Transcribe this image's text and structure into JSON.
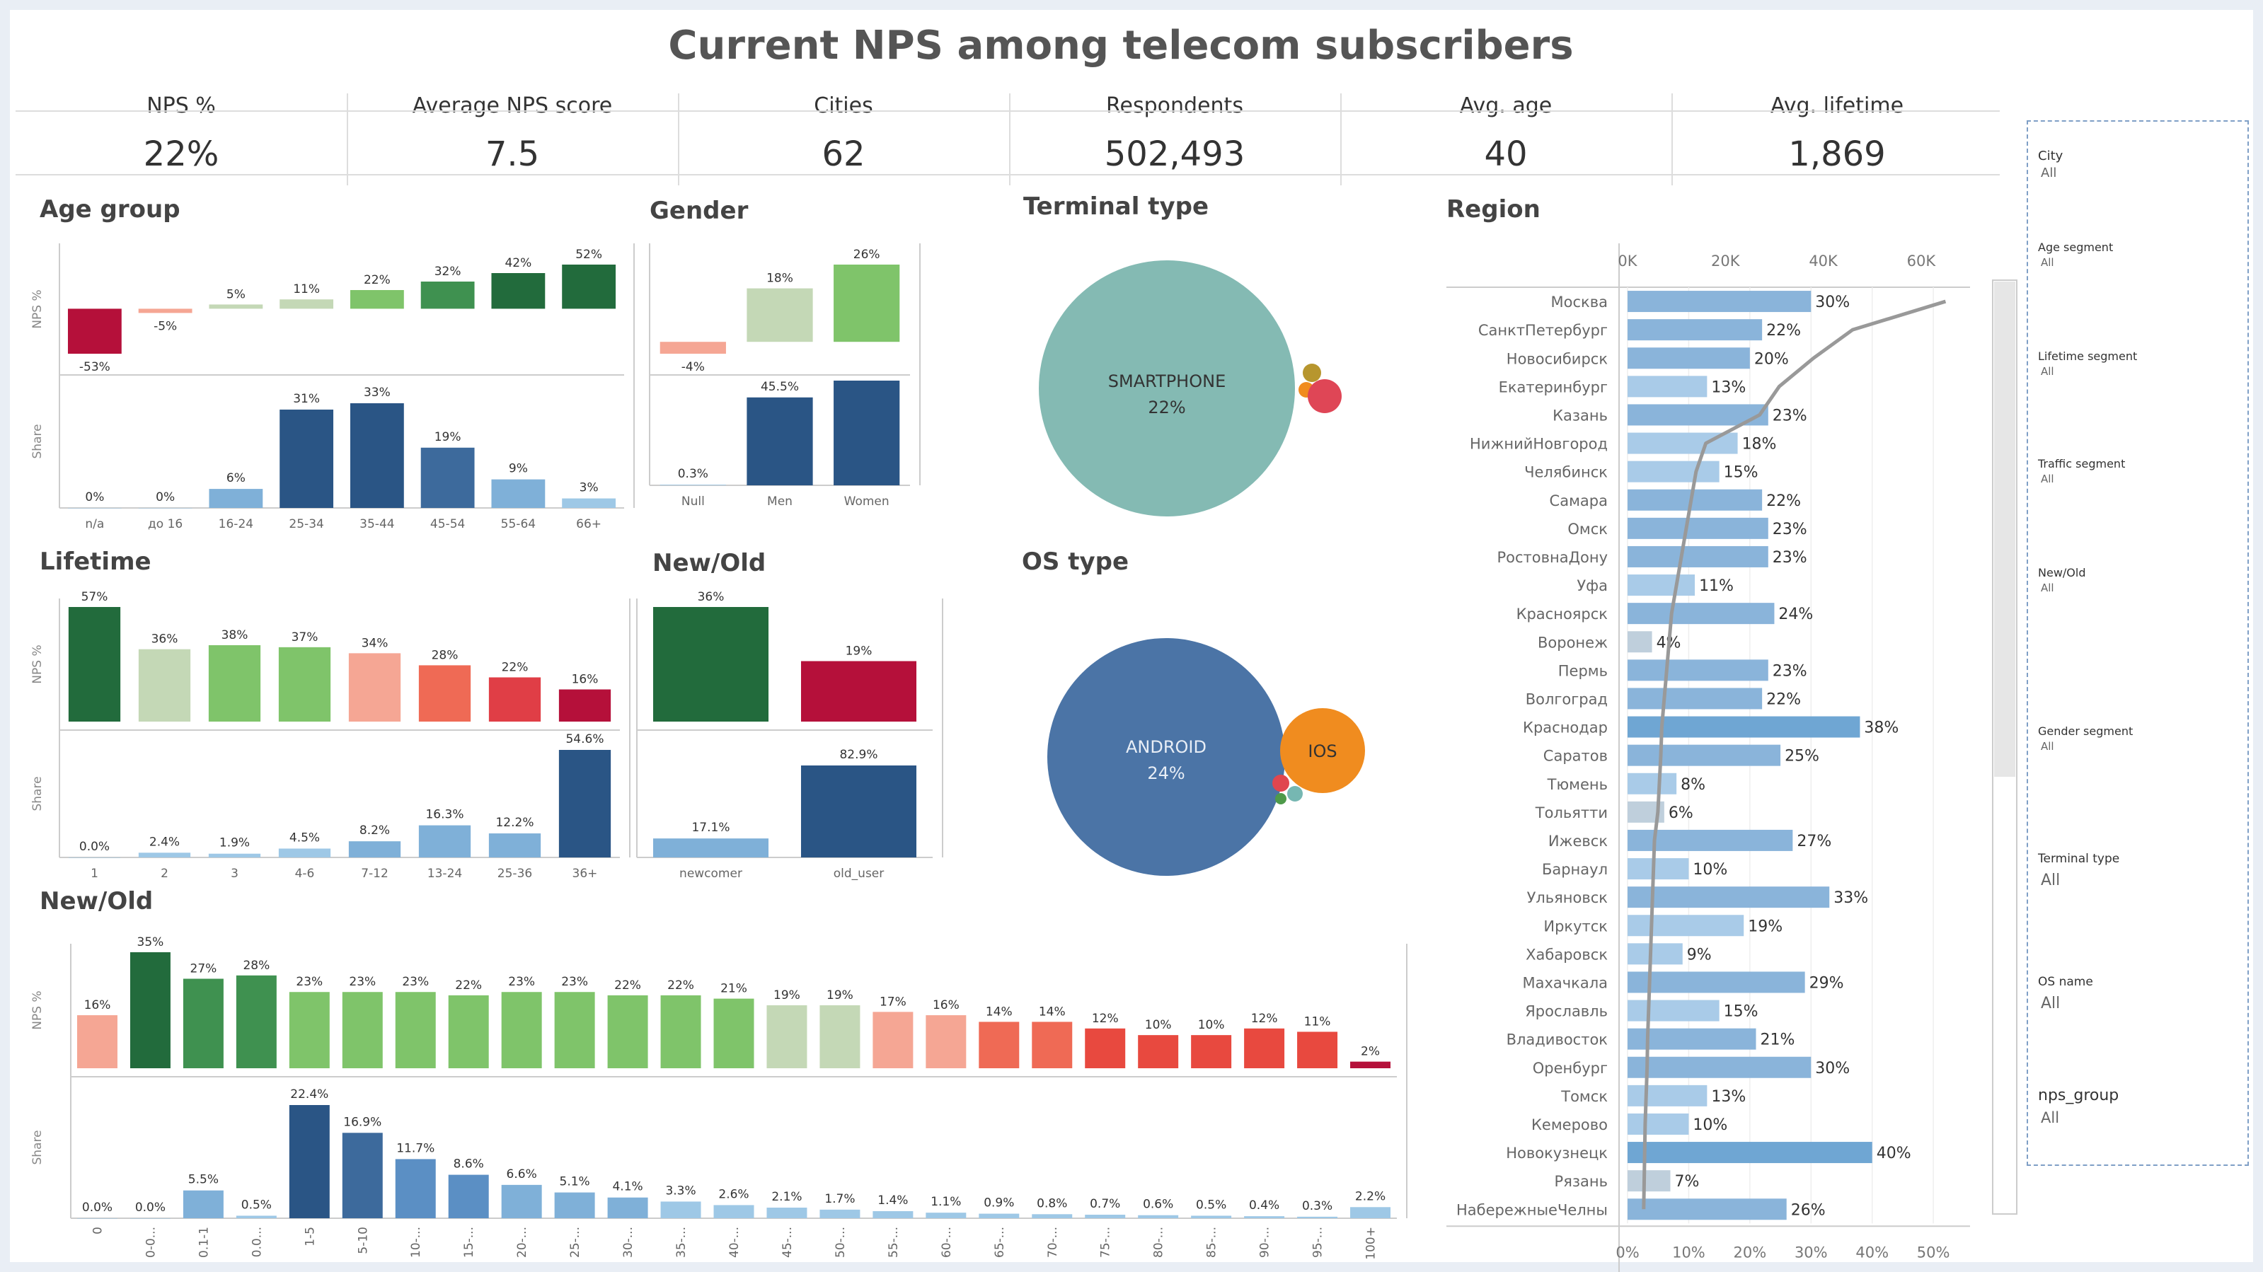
{
  "title": "Current NPS among telecom subscribers",
  "kpis": [
    {
      "label": "NPS %",
      "value": "22%"
    },
    {
      "label": "Average NPS score",
      "value": "7.5"
    },
    {
      "label": "Cities",
      "value": "62"
    },
    {
      "label": "Respondents",
      "value": "502,493"
    },
    {
      "label": "Avg. age",
      "value": "40"
    },
    {
      "label": "Avg. lifetime",
      "value": "1,869"
    }
  ],
  "sections": {
    "age_group": "Age group",
    "gender": "Gender",
    "terminal": "Terminal type",
    "region": "Region",
    "lifetime": "Lifetime",
    "newold": "New/Old",
    "os": "OS type",
    "newold2": "New/Old"
  },
  "axis_labels": {
    "nps": "NPS %",
    "share": "Share"
  },
  "colors": {
    "dark_green": "#226b3c",
    "green": "#3f9150",
    "light_green": "#7fc46a",
    "pale_green": "#c4d8b6",
    "red": "#b5103a",
    "salmon": "#f5a694",
    "orange_red": "#ef6a55",
    "dark_blue": "#2a5585",
    "mid_blue": "#3d6a9c",
    "blue": "#5b8fc4",
    "light_blue": "#9ec8e6",
    "bar_region": "#8ab4da",
    "teal": "#7fb9b1",
    "orange": "#f08c1f"
  },
  "filters": [
    {
      "name": "City",
      "value": "All"
    },
    {
      "name": "Age segment",
      "value": "All"
    },
    {
      "name": "Lifetime segment",
      "value": "All"
    },
    {
      "name": "Traffic segment",
      "value": "All"
    },
    {
      "name": "New/Old",
      "value": "All"
    },
    {
      "name": "Gender segment",
      "value": "All"
    },
    {
      "name": "Terminal type",
      "value": "All"
    },
    {
      "name": "OS name",
      "value": "All"
    },
    {
      "name": "nps_group",
      "value": "All"
    }
  ],
  "chart_data": [
    {
      "id": "age_group",
      "type": "bar",
      "title": "Age group",
      "categories": [
        "n/a",
        "до 16",
        "16-24",
        "25-34",
        "35-44",
        "45-54",
        "55-64",
        "66+"
      ],
      "series": [
        {
          "name": "NPS %",
          "values": [
            -53,
            -5,
            5,
            11,
            22,
            32,
            42,
            52
          ],
          "labels": [
            "-53%",
            "-5%",
            "5%",
            "11%",
            "22%",
            "32%",
            "42%",
            "52%"
          ]
        },
        {
          "name": "Share",
          "values": [
            0,
            0,
            6,
            31,
            33,
            19,
            9,
            3
          ],
          "labels": [
            "0%",
            "0%",
            "6%",
            "31%",
            "33%",
            "19%",
            "9%",
            "3%"
          ]
        }
      ]
    },
    {
      "id": "gender",
      "type": "bar",
      "title": "Gender",
      "categories": [
        "Null",
        "Men",
        "Women"
      ],
      "series": [
        {
          "name": "NPS %",
          "values": [
            -4,
            18,
            26
          ],
          "labels": [
            "-4%",
            "18%",
            "26%"
          ]
        },
        {
          "name": "Share",
          "values": [
            0.3,
            45.5,
            54.2
          ],
          "labels": [
            "0.3%",
            "45.5%",
            "54.2%"
          ]
        }
      ]
    },
    {
      "id": "lifetime",
      "type": "bar",
      "title": "Lifetime",
      "categories": [
        "1",
        "2",
        "3",
        "4-6",
        "7-12",
        "13-24",
        "25-36",
        "36+"
      ],
      "series": [
        {
          "name": "NPS %",
          "values": [
            57,
            36,
            38,
            37,
            34,
            28,
            22,
            16
          ],
          "labels": [
            "57%",
            "36%",
            "38%",
            "37%",
            "34%",
            "28%",
            "22%",
            "16%"
          ]
        },
        {
          "name": "Share",
          "values": [
            0.0,
            2.4,
            1.9,
            4.5,
            8.2,
            16.3,
            12.2,
            54.6
          ],
          "labels": [
            "0.0%",
            "2.4%",
            "1.9%",
            "4.5%",
            "8.2%",
            "16.3%",
            "12.2%",
            "54.6%"
          ]
        }
      ]
    },
    {
      "id": "newold",
      "type": "bar",
      "title": "New/Old",
      "categories": [
        "newcomer",
        "old_user"
      ],
      "series": [
        {
          "name": "NPS %",
          "values": [
            36,
            19
          ],
          "labels": [
            "36%",
            "19%"
          ]
        },
        {
          "name": "Share",
          "values": [
            17.1,
            82.9
          ],
          "labels": [
            "17.1%",
            "82.9%"
          ]
        }
      ]
    },
    {
      "id": "terminal",
      "type": "scatter",
      "title": "Terminal type",
      "bubbles": [
        {
          "label": "SMARTPHONE",
          "value": "22%"
        }
      ]
    },
    {
      "id": "os",
      "type": "scatter",
      "title": "OS type",
      "bubbles": [
        {
          "label": "ANDROID",
          "value": "24%"
        },
        {
          "label": "IOS",
          "value": ""
        }
      ]
    },
    {
      "id": "newold_traffic",
      "type": "bar",
      "title": "New/Old",
      "categories": [
        "0",
        "0-0...",
        "0.1-1",
        "0.0...",
        "1-5",
        "5-10",
        "10-...",
        "15-...",
        "20-...",
        "25-...",
        "30-...",
        "35-...",
        "40-...",
        "45-...",
        "50-...",
        "55-...",
        "60-...",
        "65-...",
        "70-...",
        "75-...",
        "80-...",
        "85-...",
        "90-...",
        "95-...",
        "100+"
      ],
      "series": [
        {
          "name": "NPS %",
          "values": [
            16,
            35,
            27,
            28,
            23,
            23,
            23,
            22,
            23,
            23,
            22,
            22,
            21,
            19,
            19,
            17,
            16,
            14,
            14,
            12,
            10,
            10,
            12,
            11,
            2
          ],
          "labels": [
            "16%",
            "35%",
            "27%",
            "28%",
            "23%",
            "23%",
            "23%",
            "22%",
            "23%",
            "23%",
            "22%",
            "22%",
            "21%",
            "19%",
            "19%",
            "17%",
            "16%",
            "14%",
            "14%",
            "12%",
            "10%",
            "10%",
            "12%",
            "11%",
            "2%"
          ]
        },
        {
          "name": "Share",
          "values": [
            0.0,
            0.0,
            5.5,
            0.5,
            22.4,
            16.9,
            11.7,
            8.6,
            6.6,
            5.1,
            4.1,
            3.3,
            2.6,
            2.1,
            1.7,
            1.4,
            1.1,
            0.9,
            0.8,
            0.7,
            0.6,
            0.5,
            0.4,
            0.3,
            2.2
          ],
          "labels": [
            "0.0%",
            "0.0%",
            "5.5%",
            "0.5%",
            "22.4%",
            "16.9%",
            "11.7%",
            "8.6%",
            "6.6%",
            "5.1%",
            "4.1%",
            "3.3%",
            "2.6%",
            "2.1%",
            "1.7%",
            "1.4%",
            "1.1%",
            "0.9%",
            "0.8%",
            "0.7%",
            "0.6%",
            "0.5%",
            "0.4%",
            "0.3%",
            "2.2%"
          ]
        }
      ]
    },
    {
      "id": "region",
      "type": "bar",
      "title": "Region",
      "top_axis": {
        "ticks": [
          "0K",
          "20K",
          "40K",
          "60K"
        ],
        "range": [
          0,
          70000
        ]
      },
      "bottom_axis": {
        "ticks": [
          "0%",
          "10%",
          "20%",
          "30%",
          "40%",
          "50%"
        ],
        "range": [
          0,
          56
        ]
      },
      "categories": [
        "Москва",
        "СанктПетербург",
        "Новосибирск",
        "Екатеринбург",
        "Казань",
        "НижнийНовгород",
        "Челябинск",
        "Самара",
        "Омск",
        "РостовнаДону",
        "Уфа",
        "Красноярск",
        "Воронеж",
        "Пермь",
        "Волгоград",
        "Краснодар",
        "Саратов",
        "Тюмень",
        "Тольятти",
        "Ижевск",
        "Барнаул",
        "Ульяновск",
        "Иркутск",
        "Хабаровск",
        "Махачкала",
        "Ярославль",
        "Владивосток",
        "Оренбург",
        "Томск",
        "Кемерово",
        "Новокузнецк",
        "Рязань",
        "НабережныеЧелны"
      ],
      "series": [
        {
          "name": "NPS %",
          "values": [
            30,
            22,
            20,
            13,
            23,
            18,
            15,
            22,
            23,
            23,
            11,
            24,
            4,
            23,
            22,
            38,
            25,
            8,
            6,
            27,
            10,
            33,
            19,
            9,
            29,
            15,
            21,
            30,
            13,
            10,
            40,
            7,
            26
          ],
          "labels": [
            "30%",
            "22%",
            "20%",
            "13%",
            "23%",
            "18%",
            "15%",
            "22%",
            "23%",
            "23%",
            "11%",
            "24%",
            "4%",
            "23%",
            "22%",
            "38%",
            "25%",
            "8%",
            "6%",
            "27%",
            "10%",
            "33%",
            "19%",
            "9%",
            "29%",
            "15%",
            "21%",
            "30%",
            "13%",
            "10%",
            "40%",
            "7%",
            "26%"
          ]
        },
        {
          "name": "Respondents",
          "values": [
            65000,
            46000,
            38000,
            31000,
            27000,
            16000,
            14000,
            13000,
            12000,
            11000,
            10000,
            9000,
            8500,
            8000,
            7500,
            7000,
            6800,
            6500,
            6200,
            5500,
            5300,
            5100,
            4900,
            4700,
            4500,
            4300,
            4100,
            4000,
            3800,
            3600,
            3500,
            3400,
            3300
          ]
        }
      ]
    }
  ]
}
